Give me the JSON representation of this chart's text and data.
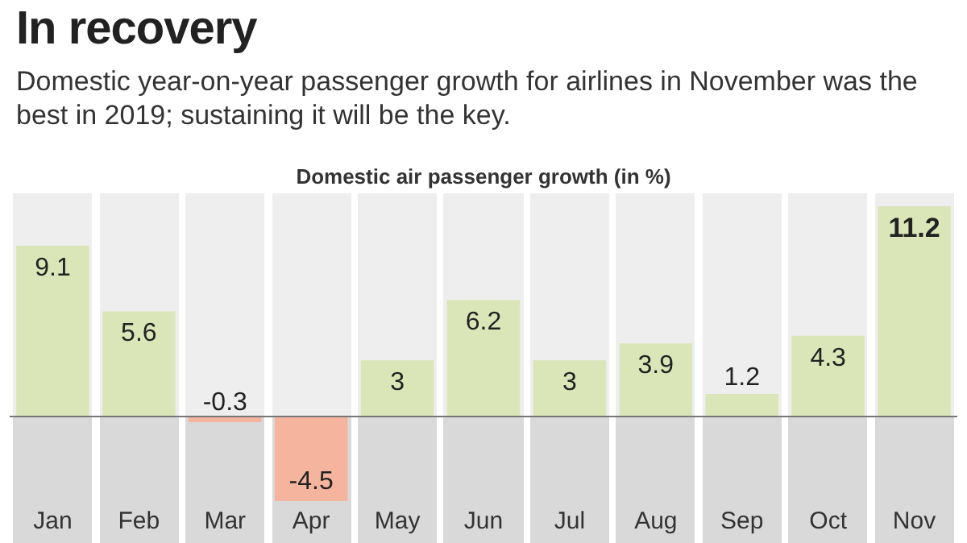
{
  "chart_data": {
    "type": "bar",
    "title": "In recovery",
    "subtitle": "Domestic year-on-year passenger growth for airlines in November was the best in 2019; sustaining it will be the key.",
    "ylabel": "Domestic air passenger growth (in %)",
    "categories": [
      "Jan",
      "Feb",
      "Mar",
      "Apr",
      "May",
      "Jun",
      "Jul",
      "Aug",
      "Sep",
      "Oct",
      "Nov"
    ],
    "values": [
      9.1,
      5.6,
      -0.3,
      -4.5,
      3,
      6.2,
      3,
      3.9,
      1.2,
      4.3,
      11.2
    ],
    "colors": [
      "#dbe6b8",
      "#dbe6b8",
      "#f5b49e",
      "#f5b49e",
      "#dbe6b8",
      "#dbe6b8",
      "#dbe6b8",
      "#dbe6b8",
      "#dbe6b8",
      "#dbe6b8",
      "#dbe6b8"
    ],
    "data_labels": true,
    "grid": false,
    "legend": false
  }
}
